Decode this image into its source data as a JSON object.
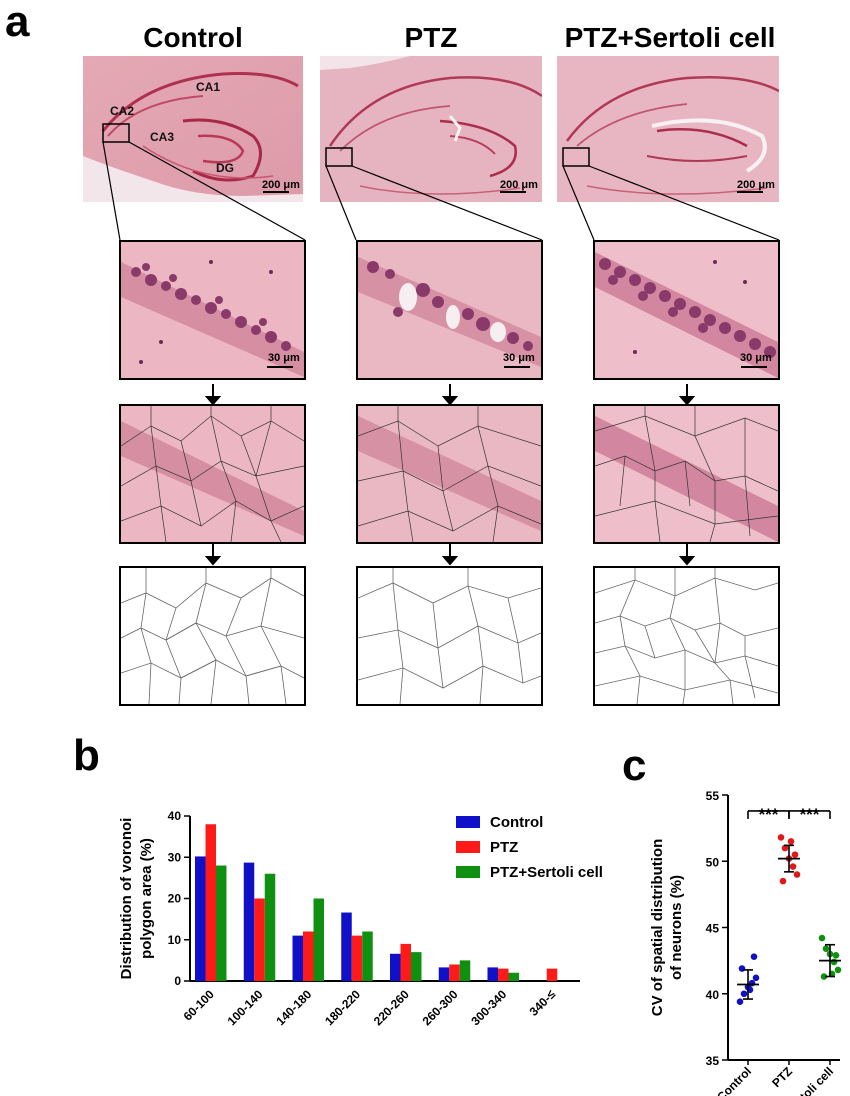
{
  "panel_a": {
    "letter": "a",
    "columns": [
      {
        "title": "Control",
        "low_scale": "200 μm",
        "high_scale": "30 μm"
      },
      {
        "title": "PTZ",
        "low_scale": "200 μm",
        "high_scale": "30 μm"
      },
      {
        "title": "PTZ+Sertoli cell",
        "low_scale": "200 μm",
        "high_scale": "30 μm"
      }
    ],
    "regions": {
      "ca1": "CA1",
      "ca2": "CA2",
      "ca3": "CA3",
      "dg": "DG"
    }
  },
  "panel_b": {
    "letter": "b"
  },
  "panel_c": {
    "letter": "c"
  },
  "chart_data": [
    {
      "type": "bar",
      "ylabel": "Distribution of voronoi polygon area (%)",
      "xlabel": "",
      "categories": [
        "60-100",
        "100-140",
        "140-180",
        "180-220",
        "220-260",
        "260-300",
        "300-340",
        "340-≤"
      ],
      "ylim": [
        0,
        40
      ],
      "yticks": [
        0,
        10,
        20,
        30,
        40
      ],
      "legend_position": "top-right",
      "series": [
        {
          "name": "Control",
          "color": "#1010c8",
          "values": [
            30.2,
            28.7,
            11.0,
            16.6,
            6.6,
            3.3,
            3.3,
            0
          ]
        },
        {
          "name": "PTZ",
          "color": "#ff1a1a",
          "values": [
            38.0,
            20.0,
            12.0,
            11.0,
            9.0,
            4.0,
            3.0,
            3.0
          ]
        },
        {
          "name": "PTZ+Sertoli cell",
          "color": "#109010",
          "values": [
            28.0,
            26.0,
            20.0,
            12.0,
            7.0,
            5.0,
            2.0,
            0
          ]
        }
      ]
    },
    {
      "type": "scatter",
      "ylabel": "CV of spatial distribution of neurons (%)",
      "categories": [
        "Control",
        "PTZ",
        "PTZ+Setoli cell"
      ],
      "ylim": [
        35,
        55
      ],
      "yticks": [
        35,
        40,
        45,
        50,
        55
      ],
      "significance": [
        "***",
        "***"
      ],
      "groups": [
        {
          "name": "Control",
          "color": "#1010c8",
          "mean": 40.7,
          "sd": 1.1,
          "points": [
            39.4,
            40.0,
            40.5,
            40.8,
            41.2,
            41.9,
            42.8,
            40.3
          ]
        },
        {
          "name": "PTZ",
          "color": "#e01818",
          "mean": 50.2,
          "sd": 1.0,
          "points": [
            51.8,
            51.0,
            50.2,
            49.6,
            49.0,
            48.5,
            50.5,
            51.5
          ]
        },
        {
          "name": "PTZ+Setoli cell",
          "color": "#109010",
          "mean": 42.5,
          "sd": 1.2,
          "points": [
            44.2,
            43.4,
            43.0,
            42.4,
            41.8,
            41.3,
            42.9,
            41.5
          ]
        }
      ]
    }
  ]
}
